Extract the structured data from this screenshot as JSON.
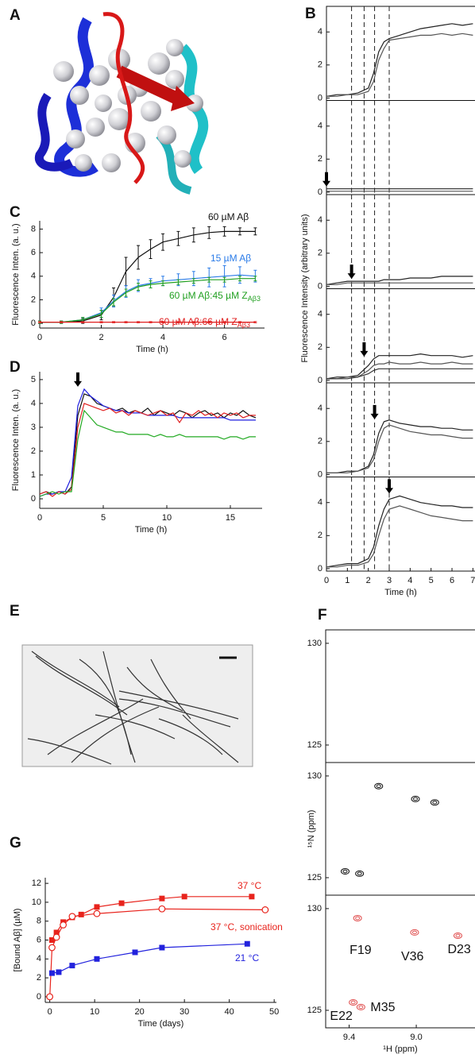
{
  "panel_labels": [
    "A",
    "B",
    "C",
    "D",
    "E",
    "F",
    "G"
  ],
  "chart_data": [
    {
      "type": "line",
      "xlabel": "Time (h)",
      "ylabel": "Fluorescence Inten. (a. u.)",
      "x": [
        0,
        0.7,
        1.4,
        2,
        2.4,
        2.8,
        3.2,
        3.6,
        4,
        4.5,
        5,
        5.5,
        6,
        6.5,
        7
      ],
      "xlim": [
        0,
        7.3
      ],
      "ylim": [
        -0.4,
        8.7
      ],
      "xticks": [
        0,
        2,
        4,
        6
      ],
      "yticks": [
        0,
        2,
        4,
        6,
        8
      ],
      "series": [
        {
          "name": "60 µM Aβ",
          "color": "#111111",
          "values": [
            0.1,
            0.1,
            0.2,
            0.7,
            2.2,
            4.4,
            5.6,
            6.3,
            6.9,
            7.2,
            7.5,
            7.7,
            7.8,
            7.8,
            7.8
          ],
          "errors": [
            0.1,
            0.1,
            0.2,
            0.4,
            0.8,
            1.2,
            1.0,
            0.8,
            0.7,
            0.6,
            0.6,
            0.5,
            0.4,
            0.3,
            0.3
          ]
        },
        {
          "name": "15 µM Aβ",
          "color": "#2a7be8",
          "values": [
            0.1,
            0.1,
            0.3,
            0.9,
            1.9,
            2.7,
            3.2,
            3.4,
            3.6,
            3.7,
            3.8,
            3.9,
            4.0,
            4.1,
            4.0
          ],
          "errors": [
            0.1,
            0.1,
            0.2,
            0.4,
            0.5,
            0.5,
            0.5,
            0.4,
            0.4,
            0.5,
            0.6,
            0.8,
            0.9,
            0.7,
            0.5
          ]
        },
        {
          "name": "60 µM Aβ:45 µM Z",
          "name_sub": "Aβ3",
          "color": "#22a022",
          "values": [
            0.1,
            0.1,
            0.3,
            0.8,
            1.8,
            2.6,
            3.1,
            3.3,
            3.4,
            3.5,
            3.6,
            3.7,
            3.7,
            3.8,
            3.8
          ],
          "errors": [
            0.1,
            0.1,
            0.2,
            0.3,
            0.3,
            0.3,
            0.3,
            0.3,
            0.2,
            0.2,
            0.2,
            0.2,
            0.2,
            0.2,
            0.2
          ]
        },
        {
          "name": "60 µM Aβ:66 µM Z",
          "name_sub": "Aβ3",
          "color": "#e02020",
          "values": [
            0.1,
            0.1,
            0.1,
            0.1,
            0.1,
            0.1,
            0.1,
            0.1,
            0.1,
            0.1,
            0.1,
            0.1,
            0.1,
            0.1,
            0.1
          ],
          "errors": [
            0.05,
            0.05,
            0.05,
            0.05,
            0.05,
            0.05,
            0.05,
            0.05,
            0.05,
            0.05,
            0.05,
            0.05,
            0.05,
            0.05,
            0.05
          ]
        }
      ]
    },
    {
      "type": "line",
      "xlabel": "Time (h)",
      "ylabel": "Fluorescence Inten. (a. u.)",
      "x": [
        0,
        0.5,
        1,
        1.5,
        2,
        2.5,
        3,
        3.5,
        4,
        4.5,
        5,
        5.5,
        6,
        6.5,
        7,
        7.5,
        8,
        8.5,
        9,
        9.5,
        10,
        10.5,
        11,
        11.5,
        12,
        12.5,
        13,
        13.5,
        14,
        14.5,
        15,
        15.5,
        16,
        16.5,
        17
      ],
      "xlim": [
        0,
        17.5
      ],
      "ylim": [
        -0.4,
        5.33
      ],
      "xticks": [
        0,
        5,
        10,
        15
      ],
      "yticks": [
        0,
        1,
        2,
        3,
        4,
        5
      ],
      "arrow_x": 3,
      "series": [
        {
          "color": "#111111",
          "values": [
            0.2,
            0.3,
            0.2,
            0.3,
            0.2,
            0.5,
            3.5,
            4.4,
            4.3,
            4.0,
            3.9,
            3.8,
            3.7,
            3.8,
            3.6,
            3.7,
            3.6,
            3.8,
            3.5,
            3.7,
            3.6,
            3.5,
            3.7,
            3.6,
            3.4,
            3.6,
            3.7,
            3.5,
            3.6,
            3.4,
            3.6,
            3.5,
            3.7,
            3.5,
            3.4
          ]
        },
        {
          "color": "#1f1fe0",
          "values": [
            0.1,
            0.2,
            0.2,
            0.3,
            0.3,
            0.9,
            3.9,
            4.6,
            4.3,
            4.1,
            3.9,
            3.8,
            3.7,
            3.7,
            3.6,
            3.6,
            3.6,
            3.5,
            3.5,
            3.5,
            3.5,
            3.5,
            3.4,
            3.4,
            3.4,
            3.4,
            3.4,
            3.4,
            3.4,
            3.4,
            3.3,
            3.3,
            3.3,
            3.3,
            3.3
          ]
        },
        {
          "color": "#e02020",
          "values": [
            0.2,
            0.3,
            0.1,
            0.3,
            0.2,
            0.4,
            3.0,
            4.0,
            3.9,
            3.8,
            3.7,
            3.8,
            3.6,
            3.7,
            3.5,
            3.7,
            3.6,
            3.5,
            3.6,
            3.7,
            3.5,
            3.6,
            3.2,
            3.6,
            3.5,
            3.7,
            3.5,
            3.6,
            3.4,
            3.6,
            3.5,
            3.6,
            3.4,
            3.5,
            3.5
          ]
        },
        {
          "color": "#22aa22",
          "values": [
            0.1,
            0.2,
            0.3,
            0.2,
            0.3,
            0.3,
            2.5,
            3.7,
            3.4,
            3.1,
            3.0,
            2.9,
            2.8,
            2.8,
            2.7,
            2.7,
            2.7,
            2.7,
            2.6,
            2.7,
            2.6,
            2.6,
            2.7,
            2.6,
            2.6,
            2.6,
            2.6,
            2.6,
            2.6,
            2.5,
            2.6,
            2.6,
            2.5,
            2.6,
            2.6
          ]
        }
      ]
    },
    {
      "type": "line",
      "xlabel": "Time (days)",
      "ylabel": "[Bound Aβ] (µM)",
      "xlim": [
        -1,
        50.5
      ],
      "ylim": [
        -0.6,
        12.6
      ],
      "xticks": [
        0,
        10,
        20,
        30,
        40,
        50
      ],
      "yticks": [
        0,
        2,
        4,
        6,
        8,
        10,
        12
      ],
      "series": [
        {
          "name": "37 °C",
          "color": "#e8231c",
          "marker": "square",
          "x": [
            0.5,
            1.5,
            3,
            5,
            7,
            10.5,
            16,
            25,
            30,
            45
          ],
          "values": [
            6.0,
            6.8,
            7.9,
            8.4,
            8.7,
            9.5,
            9.9,
            10.4,
            10.6,
            10.6
          ]
        },
        {
          "name": "37 °C, sonication",
          "color": "#e8231c",
          "marker": "open-circle",
          "x": [
            0,
            0.5,
            1.5,
            3,
            5,
            10.5,
            25,
            48
          ],
          "values": [
            0,
            5.2,
            6.3,
            7.6,
            8.5,
            8.8,
            9.3,
            9.2
          ]
        },
        {
          "name": "21 °C",
          "color": "#2222dd",
          "marker": "square",
          "x": [
            0.5,
            2,
            5,
            10.5,
            19,
            25,
            44
          ],
          "values": [
            2.5,
            2.6,
            3.3,
            4.0,
            4.7,
            5.2,
            5.6
          ]
        }
      ]
    },
    {
      "type": "line",
      "x": [
        0,
        0.5,
        1,
        1.5,
        2,
        2.25,
        2.5,
        2.75,
        3,
        3.5,
        4,
        4.5,
        5,
        5.5,
        6,
        6.5,
        7
      ],
      "xlim": [
        0,
        7.1
      ],
      "ylim": [
        -0.15,
        5.55
      ],
      "yticks": [
        0,
        2,
        4
      ],
      "vlines": [
        1.2,
        1.8,
        2.3,
        3.0
      ],
      "series": [
        {
          "color": "#222222",
          "values": [
            0.1,
            0.2,
            0.2,
            0.3,
            0.6,
            1.5,
            2.8,
            3.4,
            3.6,
            3.8,
            4.0,
            4.2,
            4.3,
            4.4,
            4.5,
            4.4,
            4.5
          ]
        },
        {
          "color": "#555555",
          "values": [
            0.1,
            0.1,
            0.2,
            0.2,
            0.4,
            1.0,
            2.3,
            3.0,
            3.5,
            3.6,
            3.7,
            3.8,
            3.8,
            3.9,
            3.8,
            3.9,
            3.8
          ]
        }
      ]
    },
    {
      "type": "line",
      "x": [
        0,
        0.5,
        1,
        1.5,
        2,
        2.25,
        2.5,
        2.75,
        3,
        3.5,
        4,
        4.5,
        5,
        5.5,
        6,
        6.5,
        7
      ],
      "xlim": [
        0,
        7.1
      ],
      "ylim": [
        -0.15,
        5.55
      ],
      "yticks": [
        0,
        2,
        4
      ],
      "vlines": [
        1.2,
        1.8,
        2.3,
        3.0
      ],
      "arrow_x": 0,
      "series": [
        {
          "color": "#222222",
          "values": [
            0.2,
            0.2,
            0.2,
            0.2,
            0.2,
            0.2,
            0.2,
            0.2,
            0.2,
            0.2,
            0.2,
            0.2,
            0.2,
            0.2,
            0.2,
            0.2,
            0.2
          ]
        },
        {
          "color": "#555555",
          "values": [
            0.05,
            0.05,
            0.05,
            0.05,
            0.05,
            0.05,
            0.05,
            0.05,
            0.05,
            0.05,
            0.05,
            0.05,
            0.05,
            0.05,
            0.05,
            0.05,
            0.05
          ]
        }
      ]
    },
    {
      "type": "line",
      "ylabel": "Fluorescence Intensity (arbitrary units)",
      "x": [
        0,
        0.5,
        1,
        1.5,
        2,
        2.25,
        2.5,
        2.75,
        3,
        3.5,
        4,
        4.5,
        5,
        5.5,
        6,
        6.5,
        7
      ],
      "xlim": [
        0,
        7.1
      ],
      "ylim": [
        -0.15,
        5.55
      ],
      "yticks": [
        0,
        2,
        4
      ],
      "vlines": [
        1.2,
        1.8,
        2.3,
        3.0
      ],
      "arrow_x": 1.2,
      "series": [
        {
          "color": "#222222",
          "values": [
            0.1,
            0.2,
            0.3,
            0.3,
            0.3,
            0.3,
            0.3,
            0.4,
            0.4,
            0.4,
            0.5,
            0.5,
            0.5,
            0.6,
            0.6,
            0.6,
            0.6
          ]
        },
        {
          "color": "#555555",
          "values": [
            0.1,
            0.1,
            0.2,
            0.2,
            0.2,
            0.2,
            0.2,
            0.2,
            0.2,
            0.2,
            0.2,
            0.2,
            0.2,
            0.2,
            0.2,
            0.2,
            0.2
          ]
        }
      ]
    },
    {
      "type": "line",
      "x": [
        0,
        0.5,
        1,
        1.5,
        2,
        2.25,
        2.5,
        2.75,
        3,
        3.5,
        4,
        4.5,
        5,
        5.5,
        6,
        6.5,
        7
      ],
      "xlim": [
        0,
        7.1
      ],
      "ylim": [
        -0.15,
        5.55
      ],
      "yticks": [
        0,
        2,
        4
      ],
      "vlines": [
        1.2,
        1.8,
        2.3,
        3.0
      ],
      "arrow_x": 1.8,
      "series": [
        {
          "color": "#222222",
          "values": [
            0.1,
            0.2,
            0.2,
            0.3,
            0.9,
            1.3,
            1.5,
            1.5,
            1.5,
            1.5,
            1.5,
            1.6,
            1.5,
            1.5,
            1.5,
            1.4,
            1.5
          ]
        },
        {
          "color": "#555555",
          "values": [
            0.1,
            0.1,
            0.2,
            0.2,
            0.6,
            0.9,
            1.0,
            1.0,
            1.1,
            1.0,
            1.0,
            1.1,
            1.0,
            1.0,
            1.1,
            1.0,
            1.0
          ]
        },
        {
          "color": "#333333",
          "values": [
            0.1,
            0.1,
            0.1,
            0.2,
            0.4,
            0.6,
            0.7,
            0.7,
            0.7,
            0.7,
            0.7,
            0.7,
            0.7,
            0.7,
            0.7,
            0.7,
            0.7
          ]
        }
      ]
    },
    {
      "type": "line",
      "x": [
        0,
        0.5,
        1,
        1.5,
        2,
        2.25,
        2.5,
        2.75,
        3,
        3.5,
        4,
        4.5,
        5,
        5.5,
        6,
        6.5,
        7
      ],
      "xlim": [
        0,
        7.1
      ],
      "ylim": [
        -0.15,
        5.55
      ],
      "yticks": [
        0,
        2,
        4
      ],
      "vlines": [
        1.2,
        1.8,
        2.3,
        3.0
      ],
      "arrow_x": 2.3,
      "series": [
        {
          "color": "#222222",
          "values": [
            0.1,
            0.1,
            0.2,
            0.2,
            0.5,
            1.2,
            2.5,
            3.2,
            3.3,
            3.1,
            3.0,
            2.9,
            2.9,
            2.8,
            2.8,
            2.7,
            2.7
          ]
        },
        {
          "color": "#555555",
          "values": [
            0.1,
            0.1,
            0.1,
            0.2,
            0.4,
            0.9,
            2.0,
            2.8,
            3.0,
            2.8,
            2.6,
            2.5,
            2.4,
            2.4,
            2.3,
            2.2,
            2.2
          ]
        }
      ]
    },
    {
      "type": "line",
      "xlabel": "Time (h)",
      "x": [
        0,
        0.5,
        1,
        1.5,
        2,
        2.25,
        2.5,
        2.75,
        3,
        3.5,
        4,
        4.5,
        5,
        5.5,
        6,
        6.5,
        7
      ],
      "xlim": [
        0,
        7.1
      ],
      "ylim": [
        -0.15,
        5.55
      ],
      "xticks": [
        0,
        1,
        2,
        3,
        4,
        5,
        6,
        7
      ],
      "yticks": [
        0,
        2,
        4
      ],
      "vlines": [
        1.2,
        1.8,
        2.3,
        3.0
      ],
      "arrow_x": 3,
      "series": [
        {
          "color": "#222222",
          "values": [
            0.1,
            0.2,
            0.3,
            0.3,
            0.6,
            1.3,
            2.6,
            3.6,
            4.2,
            4.4,
            4.2,
            4.0,
            3.9,
            3.8,
            3.8,
            3.7,
            3.7
          ]
        },
        {
          "color": "#555555",
          "values": [
            0.1,
            0.1,
            0.2,
            0.2,
            0.4,
            0.9,
            2.0,
            3.0,
            3.6,
            3.8,
            3.6,
            3.4,
            3.2,
            3.1,
            3.0,
            2.9,
            2.9
          ]
        }
      ]
    },
    {
      "type": "scatter",
      "xlim": [
        9.54,
        8.65
      ],
      "ylim": [
        124.14,
        130.66
      ],
      "yticks": [
        125,
        130
      ]
    },
    {
      "type": "scatter",
      "ylabel": "¹⁵N (ppm)",
      "xlim": [
        9.54,
        8.65
      ],
      "ylim": [
        124.14,
        130.66
      ],
      "yticks": [
        125,
        130
      ],
      "series": [
        {
          "color": "#111111",
          "x": [
            9.424,
            9.338,
            9.224,
            9.005,
            8.89
          ],
          "values": [
            125.31,
            125.2,
            129.5,
            128.87,
            128.7
          ]
        }
      ]
    },
    {
      "type": "scatter",
      "xlabel": "¹H (ppm)",
      "xlim": [
        9.54,
        8.65
      ],
      "ylim": [
        124.14,
        130.66
      ],
      "yticks": [
        125,
        130
      ],
      "xticks": [
        9.4,
        {
          "value": 9.0,
          "label": "9.0"
        }
      ],
      "series": [
        {
          "color": "#e05050",
          "x": [
            9.376,
            9.33,
            9.01,
            8.752,
            9.35
          ],
          "values": [
            125.39,
            125.16,
            128.83,
            128.67,
            129.53
          ],
          "labels": [
            "E22",
            "M35",
            "V36",
            "D23",
            "F19"
          ]
        }
      ]
    }
  ]
}
